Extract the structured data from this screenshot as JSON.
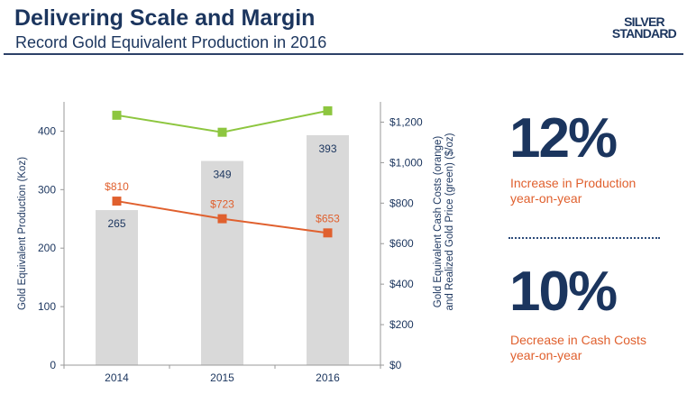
{
  "header": {
    "title": "Delivering Scale and Margin",
    "subtitle": "Record Gold Equivalent Production in 2016",
    "logo": "SILVER STANDARD"
  },
  "colors": {
    "bars": "#d9d9d9",
    "cash_cost": "#e0602e",
    "gold_price": "#8dc63f",
    "text": "#1b355e"
  },
  "chart_data": {
    "type": "bar+line",
    "categories": [
      "2014",
      "2015",
      "2016"
    ],
    "ylabel": "Gold Equivalent Production (Koz)",
    "ylabel_right": [
      "Gold Equivalent Cash Costs (orange)",
      "and Realized Gold Price (green)  ($/oz)"
    ],
    "ylim": [
      0,
      450
    ],
    "yticks": [
      "0",
      "100",
      "200",
      "300",
      "400"
    ],
    "ylim_right": [
      0,
      1300
    ],
    "yticks_right": [
      "$0",
      "$200",
      "$400",
      "$600",
      "$800",
      "$1,000",
      "$1,200"
    ],
    "series": [
      {
        "type": "bar",
        "axis": "left",
        "values": [
          265,
          349,
          393
        ],
        "labels": [
          "265",
          "349",
          "393"
        ]
      },
      {
        "type": "line",
        "axis": "right",
        "color": "orange",
        "values": [
          810,
          723,
          653
        ],
        "labels": [
          "$810",
          "$723",
          "$653"
        ]
      },
      {
        "type": "line",
        "axis": "right",
        "color": "green",
        "values": [
          1234,
          1150,
          1256
        ]
      }
    ]
  },
  "stats": [
    {
      "value": "12%",
      "line1": "Increase in Production",
      "line2": "year-on-year"
    },
    {
      "value": "10%",
      "line1": "Decrease in Cash Costs",
      "line2": "year-on-year"
    }
  ]
}
